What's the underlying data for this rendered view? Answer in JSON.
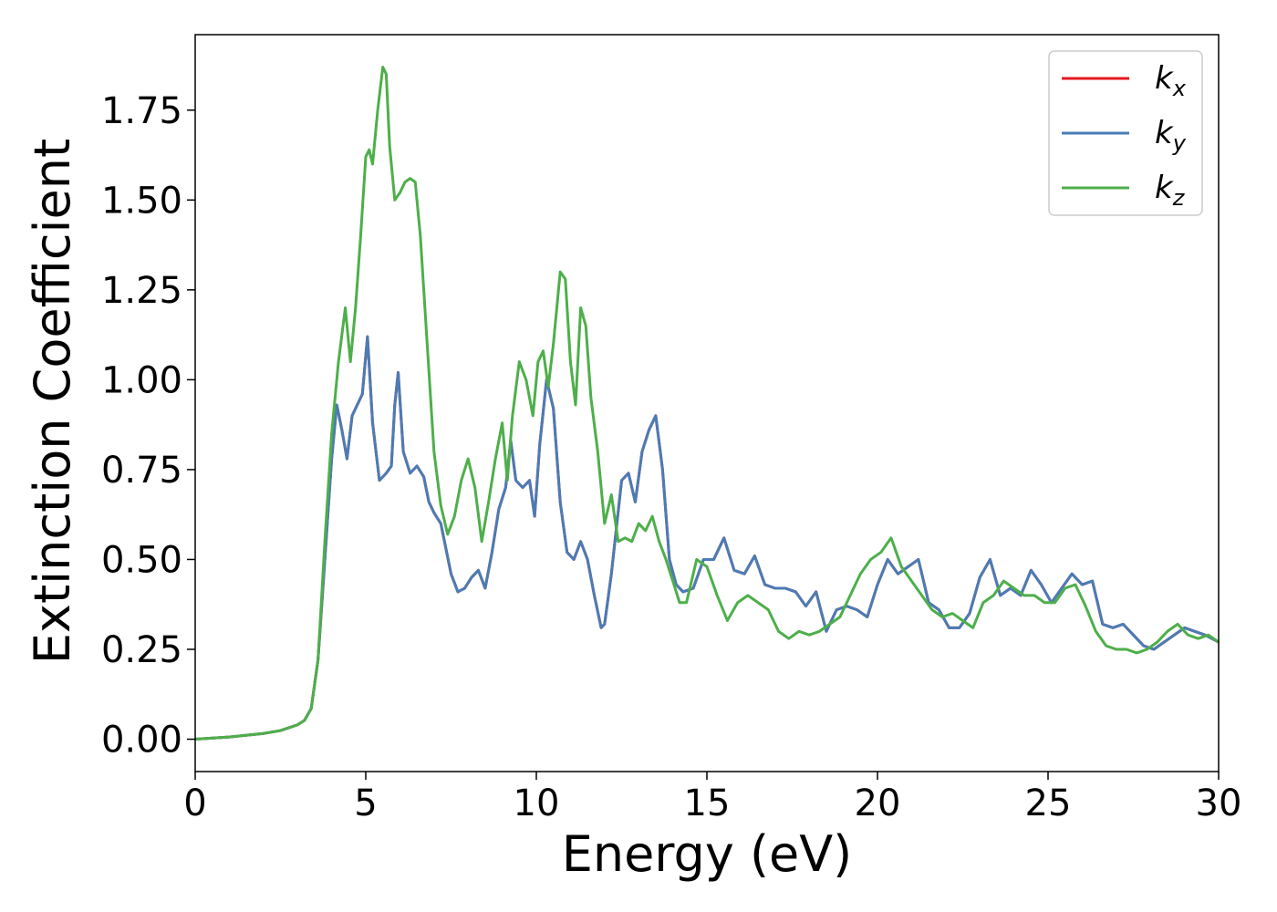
{
  "chart_data": {
    "type": "line",
    "xlabel": "Energy (eV)",
    "ylabel": "Extinction Coefficient",
    "xlim": [
      0,
      30
    ],
    "ylim": [
      -0.09,
      1.96
    ],
    "xticks": [
      0,
      5,
      10,
      15,
      20,
      25,
      30
    ],
    "xtick_labels": [
      "0",
      "5",
      "10",
      "15",
      "20",
      "25",
      "30"
    ],
    "yticks": [
      0.0,
      0.25,
      0.5,
      0.75,
      1.0,
      1.25,
      1.5,
      1.75
    ],
    "ytick_labels": [
      "0.00",
      "0.25",
      "0.50",
      "0.75",
      "1.00",
      "1.25",
      "1.50",
      "1.75"
    ],
    "grid": false,
    "legend_position": "top-right",
    "series": [
      {
        "name": "k",
        "subscript": "x",
        "color": "#e41a1c",
        "x": [
          0,
          1,
          2,
          2.5,
          3,
          3.2,
          3.4,
          3.6,
          3.8,
          4.0,
          4.15,
          4.3,
          4.45,
          4.6,
          4.75,
          4.9,
          5.05,
          5.2,
          5.4,
          5.6,
          5.75,
          5.85,
          5.95,
          6.1,
          6.3,
          6.5,
          6.7,
          6.85,
          7.0,
          7.2,
          7.5,
          7.7,
          7.9,
          8.1,
          8.3,
          8.5,
          8.7,
          8.9,
          9.1,
          9.25,
          9.4,
          9.6,
          9.8,
          9.95,
          10.1,
          10.3,
          10.5,
          10.7,
          10.9,
          11.1,
          11.3,
          11.5,
          11.7,
          11.9,
          12.0,
          12.2,
          12.5,
          12.7,
          12.9,
          13.1,
          13.3,
          13.5,
          13.7,
          13.9,
          14.1,
          14.3,
          14.6,
          14.9,
          15.2,
          15.5,
          15.8,
          16.1,
          16.4,
          16.7,
          17.0,
          17.3,
          17.6,
          17.9,
          18.2,
          18.5,
          18.8,
          19.1,
          19.4,
          19.7,
          20.0,
          20.3,
          20.6,
          20.9,
          21.2,
          21.5,
          21.8,
          22.1,
          22.4,
          22.7,
          23.0,
          23.3,
          23.6,
          23.9,
          24.2,
          24.5,
          24.8,
          25.1,
          25.4,
          25.7,
          26.0,
          26.3,
          26.6,
          26.9,
          27.2,
          27.5,
          27.8,
          28.1,
          28.4,
          28.7,
          29.0,
          29.3,
          29.6,
          30.0
        ],
        "y": [
          0.0,
          0.006,
          0.016,
          0.024,
          0.04,
          0.052,
          0.085,
          0.22,
          0.5,
          0.78,
          0.93,
          0.86,
          0.78,
          0.9,
          0.93,
          0.96,
          1.12,
          0.88,
          0.72,
          0.74,
          0.76,
          0.93,
          1.02,
          0.8,
          0.74,
          0.76,
          0.73,
          0.66,
          0.63,
          0.6,
          0.46,
          0.41,
          0.42,
          0.45,
          0.47,
          0.42,
          0.52,
          0.64,
          0.7,
          0.83,
          0.72,
          0.7,
          0.72,
          0.62,
          0.82,
          1.0,
          0.92,
          0.66,
          0.52,
          0.5,
          0.55,
          0.5,
          0.4,
          0.31,
          0.32,
          0.46,
          0.72,
          0.74,
          0.66,
          0.8,
          0.86,
          0.9,
          0.75,
          0.5,
          0.43,
          0.41,
          0.42,
          0.5,
          0.5,
          0.56,
          0.47,
          0.46,
          0.51,
          0.43,
          0.42,
          0.42,
          0.41,
          0.37,
          0.41,
          0.3,
          0.36,
          0.37,
          0.36,
          0.34,
          0.43,
          0.5,
          0.46,
          0.48,
          0.5,
          0.38,
          0.36,
          0.31,
          0.31,
          0.35,
          0.45,
          0.5,
          0.4,
          0.42,
          0.4,
          0.47,
          0.43,
          0.38,
          0.42,
          0.46,
          0.43,
          0.44,
          0.32,
          0.31,
          0.32,
          0.29,
          0.26,
          0.25,
          0.27,
          0.29,
          0.31,
          0.3,
          0.29,
          0.27
        ]
      },
      {
        "name": "k",
        "subscript": "y",
        "color": "#4a7cb5",
        "x": [
          0,
          1,
          2,
          2.5,
          3,
          3.2,
          3.4,
          3.6,
          3.8,
          4.0,
          4.15,
          4.3,
          4.45,
          4.6,
          4.75,
          4.9,
          5.05,
          5.2,
          5.4,
          5.6,
          5.75,
          5.85,
          5.95,
          6.1,
          6.3,
          6.5,
          6.7,
          6.85,
          7.0,
          7.2,
          7.5,
          7.7,
          7.9,
          8.1,
          8.3,
          8.5,
          8.7,
          8.9,
          9.1,
          9.25,
          9.4,
          9.6,
          9.8,
          9.95,
          10.1,
          10.3,
          10.5,
          10.7,
          10.9,
          11.1,
          11.3,
          11.5,
          11.7,
          11.9,
          12.0,
          12.2,
          12.5,
          12.7,
          12.9,
          13.1,
          13.3,
          13.5,
          13.7,
          13.9,
          14.1,
          14.3,
          14.6,
          14.9,
          15.2,
          15.5,
          15.8,
          16.1,
          16.4,
          16.7,
          17.0,
          17.3,
          17.6,
          17.9,
          18.2,
          18.5,
          18.8,
          19.1,
          19.4,
          19.7,
          20.0,
          20.3,
          20.6,
          20.9,
          21.2,
          21.5,
          21.8,
          22.1,
          22.4,
          22.7,
          23.0,
          23.3,
          23.6,
          23.9,
          24.2,
          24.5,
          24.8,
          25.1,
          25.4,
          25.7,
          26.0,
          26.3,
          26.6,
          26.9,
          27.2,
          27.5,
          27.8,
          28.1,
          28.4,
          28.7,
          29.0,
          29.3,
          29.6,
          30.0
        ],
        "y": [
          0.0,
          0.006,
          0.016,
          0.024,
          0.04,
          0.052,
          0.085,
          0.22,
          0.5,
          0.78,
          0.93,
          0.86,
          0.78,
          0.9,
          0.93,
          0.96,
          1.12,
          0.88,
          0.72,
          0.74,
          0.76,
          0.93,
          1.02,
          0.8,
          0.74,
          0.76,
          0.73,
          0.66,
          0.63,
          0.6,
          0.46,
          0.41,
          0.42,
          0.45,
          0.47,
          0.42,
          0.52,
          0.64,
          0.7,
          0.83,
          0.72,
          0.7,
          0.72,
          0.62,
          0.82,
          1.0,
          0.92,
          0.66,
          0.52,
          0.5,
          0.55,
          0.5,
          0.4,
          0.31,
          0.32,
          0.46,
          0.72,
          0.74,
          0.66,
          0.8,
          0.86,
          0.9,
          0.75,
          0.5,
          0.43,
          0.41,
          0.42,
          0.5,
          0.5,
          0.56,
          0.47,
          0.46,
          0.51,
          0.43,
          0.42,
          0.42,
          0.41,
          0.37,
          0.41,
          0.3,
          0.36,
          0.37,
          0.36,
          0.34,
          0.43,
          0.5,
          0.46,
          0.48,
          0.5,
          0.38,
          0.36,
          0.31,
          0.31,
          0.35,
          0.45,
          0.5,
          0.4,
          0.42,
          0.4,
          0.47,
          0.43,
          0.38,
          0.42,
          0.46,
          0.43,
          0.44,
          0.32,
          0.31,
          0.32,
          0.29,
          0.26,
          0.25,
          0.27,
          0.29,
          0.31,
          0.3,
          0.29,
          0.27
        ]
      },
      {
        "name": "k",
        "subscript": "z",
        "color": "#4daf4a",
        "x": [
          0,
          1,
          2,
          2.5,
          3,
          3.2,
          3.4,
          3.6,
          3.8,
          4.0,
          4.2,
          4.4,
          4.55,
          4.7,
          4.85,
          5.0,
          5.1,
          5.2,
          5.35,
          5.5,
          5.6,
          5.7,
          5.85,
          6.0,
          6.15,
          6.3,
          6.45,
          6.6,
          6.8,
          7.0,
          7.2,
          7.4,
          7.6,
          7.8,
          8.0,
          8.2,
          8.4,
          8.6,
          8.8,
          9.0,
          9.15,
          9.3,
          9.5,
          9.7,
          9.9,
          10.05,
          10.2,
          10.35,
          10.5,
          10.7,
          10.85,
          11.0,
          11.15,
          11.3,
          11.45,
          11.6,
          11.8,
          12.0,
          12.2,
          12.4,
          12.6,
          12.8,
          13.0,
          13.2,
          13.4,
          13.6,
          13.8,
          14.0,
          14.2,
          14.4,
          14.7,
          15.0,
          15.3,
          15.6,
          15.9,
          16.2,
          16.5,
          16.8,
          17.1,
          17.4,
          17.7,
          18.0,
          18.3,
          18.6,
          18.9,
          19.2,
          19.5,
          19.8,
          20.1,
          20.4,
          20.7,
          21.0,
          21.3,
          21.6,
          21.9,
          22.2,
          22.5,
          22.8,
          23.1,
          23.4,
          23.7,
          24.0,
          24.3,
          24.6,
          24.9,
          25.2,
          25.5,
          25.8,
          26.1,
          26.4,
          26.7,
          27.0,
          27.3,
          27.6,
          27.9,
          28.2,
          28.5,
          28.8,
          29.1,
          29.4,
          29.7,
          30.0
        ],
        "y": [
          0.0,
          0.006,
          0.016,
          0.024,
          0.04,
          0.052,
          0.085,
          0.22,
          0.55,
          0.85,
          1.05,
          1.2,
          1.05,
          1.2,
          1.4,
          1.62,
          1.64,
          1.6,
          1.75,
          1.87,
          1.85,
          1.65,
          1.5,
          1.52,
          1.55,
          1.56,
          1.55,
          1.4,
          1.1,
          0.8,
          0.65,
          0.57,
          0.62,
          0.72,
          0.78,
          0.7,
          0.55,
          0.66,
          0.78,
          0.88,
          0.72,
          0.9,
          1.05,
          1.0,
          0.9,
          1.05,
          1.08,
          0.98,
          1.1,
          1.3,
          1.28,
          1.05,
          0.93,
          1.2,
          1.15,
          0.95,
          0.8,
          0.6,
          0.68,
          0.55,
          0.56,
          0.55,
          0.6,
          0.58,
          0.62,
          0.55,
          0.5,
          0.44,
          0.38,
          0.38,
          0.5,
          0.48,
          0.4,
          0.33,
          0.38,
          0.4,
          0.38,
          0.36,
          0.3,
          0.28,
          0.3,
          0.29,
          0.3,
          0.32,
          0.34,
          0.4,
          0.46,
          0.5,
          0.52,
          0.56,
          0.48,
          0.44,
          0.4,
          0.36,
          0.34,
          0.35,
          0.33,
          0.31,
          0.38,
          0.4,
          0.44,
          0.42,
          0.4,
          0.4,
          0.38,
          0.38,
          0.42,
          0.43,
          0.37,
          0.3,
          0.26,
          0.25,
          0.25,
          0.24,
          0.25,
          0.27,
          0.3,
          0.32,
          0.29,
          0.28,
          0.29,
          0.27
        ]
      }
    ]
  }
}
